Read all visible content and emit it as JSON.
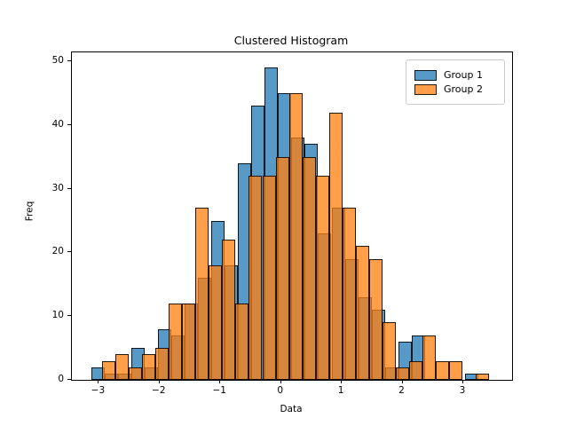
{
  "title": "Clustered Histogram",
  "x_axis_label": "Data",
  "y_axis_label": "Freq",
  "legend": {
    "items": [
      {
        "label": "Group 1",
        "color": "#1f77b4"
      },
      {
        "label": "Group 2",
        "color": "#ff7f0e"
      }
    ]
  },
  "chart_data": {
    "type": "bar",
    "subtype": "overlaid-histogram",
    "title": "Clustered Histogram",
    "xlabel": "Data",
    "ylabel": "Freq",
    "xlim": [
      -3.444,
      3.804
    ],
    "ylim": [
      0,
      51.4
    ],
    "xticks": [
      -3,
      -2,
      -1,
      0,
      1,
      2,
      3
    ],
    "yticks": [
      0,
      10,
      20,
      30,
      40,
      50
    ],
    "grid": false,
    "legend_position": "upper right",
    "bar_alpha": 0.75,
    "bin_width": 0.22,
    "series": [
      {
        "name": "Group 1",
        "color": "#1f77b4",
        "bin_start": -3.13,
        "counts": [
          2,
          1,
          1,
          5,
          2,
          8,
          7,
          12,
          16,
          25,
          18,
          34,
          43,
          49,
          45,
          38,
          37,
          23,
          27,
          19,
          13,
          11,
          2,
          6,
          7,
          0,
          0,
          0,
          1
        ]
      },
      {
        "name": "Group 2",
        "color": "#ff7f0e",
        "bin_start": -2.95,
        "counts": [
          3,
          4,
          2,
          4,
          5,
          12,
          12,
          27,
          18,
          22,
          12,
          32,
          32,
          35,
          45,
          35,
          32,
          42,
          27,
          21,
          19,
          9,
          2,
          3,
          7,
          3,
          3,
          0,
          1
        ]
      }
    ]
  }
}
